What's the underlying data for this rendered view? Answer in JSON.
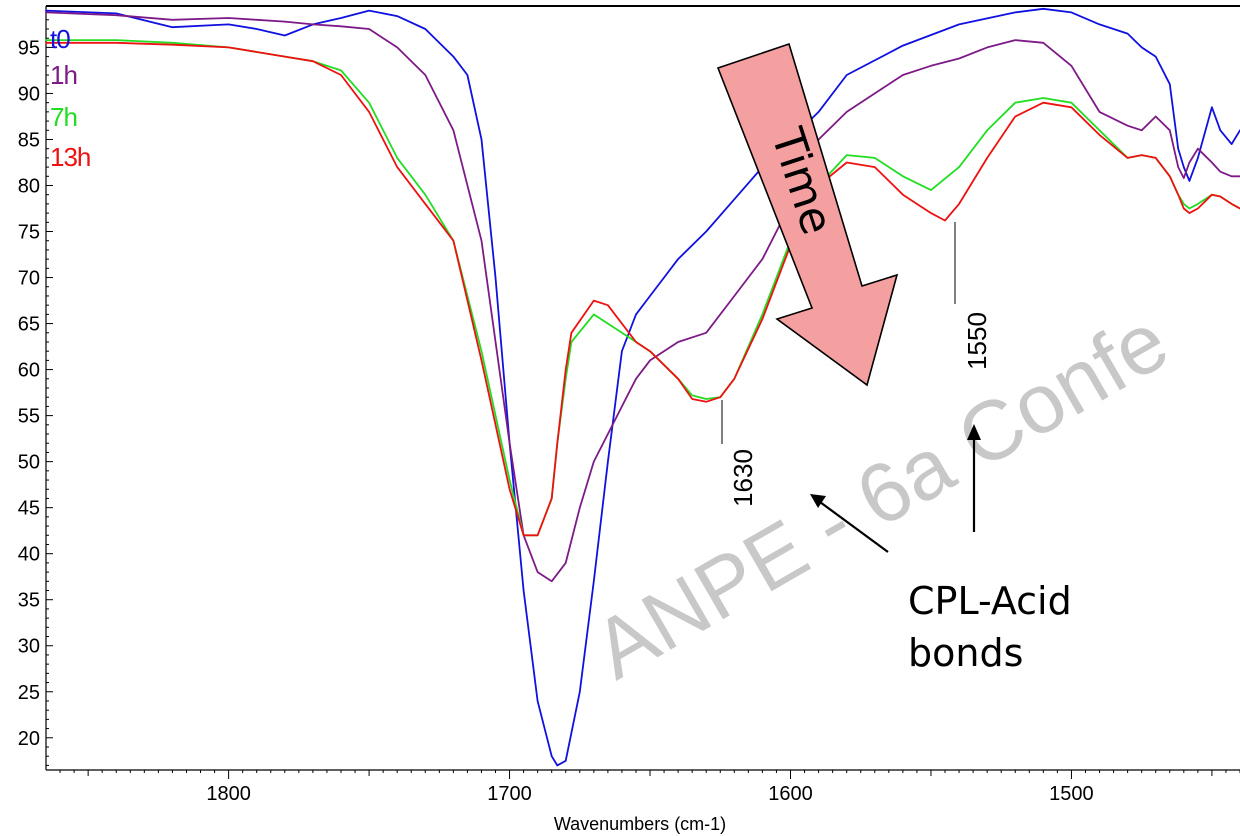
{
  "chart_data": {
    "type": "line",
    "title": "",
    "xlabel": "Wavenumbers (cm-1)",
    "ylabel": "",
    "x_reversed": true,
    "xlim": [
      1865,
      1440
    ],
    "ylim": [
      16.5,
      99.5
    ],
    "xticks": [
      1800,
      1700,
      1600,
      1500
    ],
    "yticks": [
      20,
      25,
      30,
      35,
      40,
      45,
      50,
      55,
      60,
      65,
      70,
      75,
      80,
      85,
      90,
      95
    ],
    "grid": false,
    "legend_placement": "top-left",
    "series": [
      {
        "name": "t0",
        "color": "#1010e0",
        "x": [
          1865,
          1840,
          1820,
          1800,
          1790,
          1780,
          1770,
          1760,
          1750,
          1740,
          1730,
          1720,
          1715,
          1710,
          1705,
          1700,
          1695,
          1690,
          1685,
          1683,
          1680,
          1675,
          1670,
          1665,
          1660,
          1655,
          1650,
          1645,
          1640,
          1630,
          1620,
          1610,
          1600,
          1590,
          1580,
          1560,
          1540,
          1520,
          1510,
          1500,
          1490,
          1480,
          1475,
          1470,
          1465,
          1462,
          1460,
          1458,
          1455,
          1450,
          1447,
          1443,
          1440
        ],
        "y": [
          99,
          98.7,
          97.2,
          97.5,
          97,
          96.3,
          97.5,
          98.2,
          99,
          98.4,
          97,
          94,
          92,
          85,
          70,
          52,
          36,
          24,
          18,
          17,
          17.5,
          25,
          37,
          50,
          62,
          66,
          68,
          70,
          72,
          75,
          78.5,
          82,
          85,
          88,
          92,
          95.2,
          97.5,
          98.8,
          99.2,
          98.8,
          97.5,
          96.5,
          95,
          94,
          91,
          84,
          82,
          80.5,
          83,
          88.5,
          86,
          84.5,
          86
        ]
      },
      {
        "name": "1h",
        "color": "#7d1a87",
        "x": [
          1865,
          1840,
          1820,
          1800,
          1790,
          1780,
          1770,
          1760,
          1750,
          1740,
          1730,
          1720,
          1710,
          1700,
          1695,
          1690,
          1685,
          1680,
          1675,
          1670,
          1665,
          1660,
          1655,
          1650,
          1640,
          1630,
          1620,
          1610,
          1600,
          1590,
          1580,
          1570,
          1560,
          1550,
          1540,
          1530,
          1520,
          1510,
          1500,
          1490,
          1480,
          1475,
          1470,
          1465,
          1462,
          1460,
          1458,
          1455,
          1450,
          1447,
          1443,
          1440
        ],
        "y": [
          98.8,
          98.5,
          98,
          98.2,
          98,
          97.8,
          97.5,
          97.3,
          97,
          95,
          92,
          86,
          74,
          52,
          42,
          38,
          37,
          39,
          45,
          50,
          53,
          56,
          59,
          61,
          63,
          64,
          68,
          72,
          78,
          85,
          88,
          90,
          92,
          93,
          93.8,
          95,
          95.8,
          95.5,
          93,
          88,
          86.5,
          86,
          87.5,
          86,
          82,
          80.8,
          82.5,
          84,
          82.5,
          81.5,
          81,
          81
        ]
      },
      {
        "name": "7h",
        "color": "#22dd22",
        "x": [
          1865,
          1840,
          1820,
          1800,
          1790,
          1780,
          1770,
          1760,
          1750,
          1740,
          1730,
          1720,
          1710,
          1700,
          1695,
          1690,
          1685,
          1683,
          1680,
          1678,
          1670,
          1665,
          1660,
          1655,
          1650,
          1640,
          1635,
          1630,
          1625,
          1620,
          1610,
          1600,
          1590,
          1580,
          1570,
          1560,
          1550,
          1540,
          1530,
          1520,
          1510,
          1500,
          1490,
          1480,
          1475,
          1470,
          1465,
          1462,
          1460,
          1458,
          1455,
          1450,
          1447,
          1443,
          1440
        ],
        "y": [
          95.8,
          95.8,
          95.5,
          95,
          94.5,
          94,
          93.5,
          92.5,
          89,
          83,
          79,
          74,
          62,
          48,
          42,
          42,
          46,
          52,
          59,
          63,
          66,
          65,
          64,
          63,
          62,
          59,
          57.2,
          56.8,
          57,
          59,
          66,
          74,
          80,
          83.3,
          83,
          81,
          79.5,
          82,
          86,
          89,
          89.5,
          89,
          86,
          83,
          83.3,
          83,
          81,
          79,
          78,
          77.5,
          78,
          79,
          78.8,
          78,
          77.5
        ]
      },
      {
        "name": "13h",
        "color": "#ee1111",
        "x": [
          1865,
          1840,
          1820,
          1800,
          1790,
          1780,
          1770,
          1760,
          1750,
          1740,
          1730,
          1720,
          1710,
          1700,
          1695,
          1690,
          1685,
          1683,
          1680,
          1678,
          1670,
          1665,
          1660,
          1655,
          1650,
          1640,
          1635,
          1630,
          1625,
          1620,
          1610,
          1600,
          1590,
          1580,
          1570,
          1560,
          1550,
          1545,
          1540,
          1530,
          1520,
          1510,
          1500,
          1490,
          1480,
          1475,
          1470,
          1465,
          1462,
          1460,
          1458,
          1455,
          1450,
          1447,
          1443,
          1440
        ],
        "y": [
          95.5,
          95.5,
          95.3,
          95,
          94.5,
          94,
          93.5,
          92,
          88,
          82,
          78,
          74,
          61,
          47,
          42,
          42,
          46,
          52,
          60,
          64,
          67.5,
          67,
          65,
          63,
          62,
          59,
          56.8,
          56.5,
          57,
          59,
          65.5,
          73.5,
          80,
          82.5,
          82,
          79,
          77,
          76.2,
          78,
          83,
          87.5,
          89,
          88.5,
          85.5,
          83,
          83.3,
          83,
          81,
          79,
          77.5,
          77,
          77.5,
          79,
          78.8,
          78,
          77.5
        ]
      }
    ],
    "annotations": [
      {
        "text": "1630",
        "x": 1630
      },
      {
        "text": "1550",
        "x": 1550
      },
      {
        "text": "CPL-Acid bonds"
      },
      {
        "text": "Time"
      }
    ],
    "watermark": "ANPE - 6a Confe"
  },
  "legend": {
    "entries": [
      {
        "label": "t0",
        "color": "#1010e0"
      },
      {
        "label": "1h",
        "color": "#7d1a87"
      },
      {
        "label": "7h",
        "color": "#22dd22"
      },
      {
        "label": "13h",
        "color": "#ee1111"
      }
    ]
  },
  "annotations": {
    "peak1": "1630",
    "peak2": "1550",
    "callout_line1": "CPL-Acid",
    "callout_line2": "bonds",
    "time_label": "Time",
    "watermark": "ANPE - 6a Confe"
  }
}
